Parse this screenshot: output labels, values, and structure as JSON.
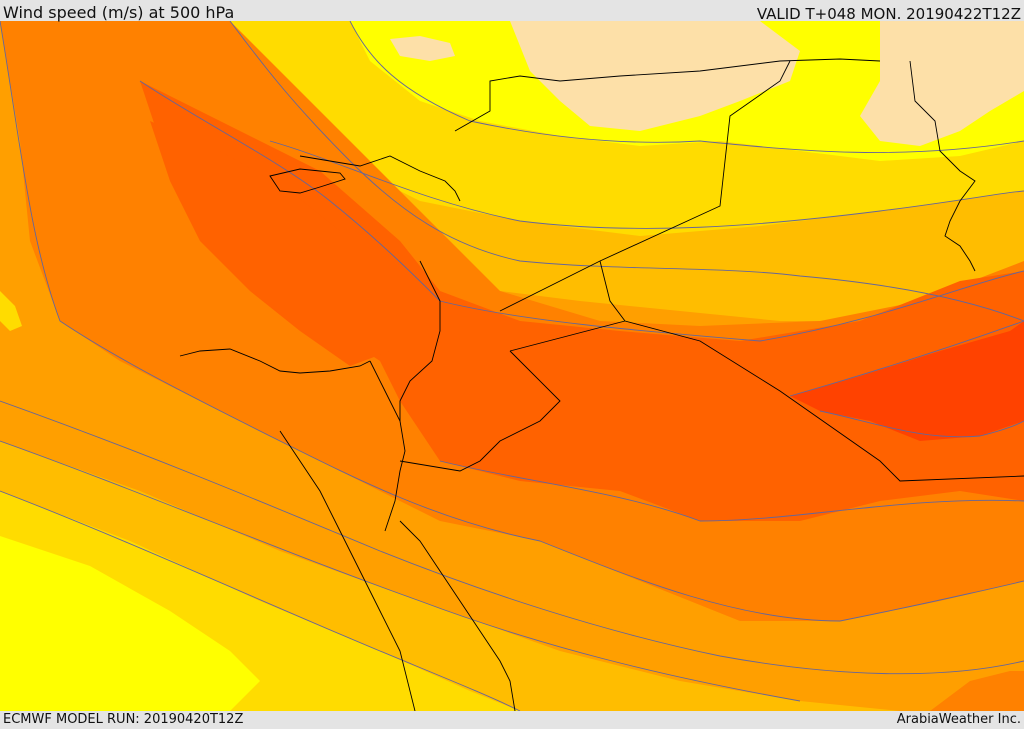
{
  "header": {
    "title": "Wind speed (m/s) at 500 hPa",
    "valid": "VALID T+048 MON. 20190422T12Z"
  },
  "footer": {
    "model_run": "ECMWF MODEL RUN: 20190420T12Z",
    "credit": "ArabiaWeather Inc."
  },
  "colors": {
    "band_pale": "#fde0a8",
    "band_yellow": "#ffff00",
    "band_gold": "#ffdc00",
    "band_amber": "#ffbd00",
    "band_orange1": "#ff9f00",
    "band_orange2": "#ff8100",
    "band_orange3": "#ff6200",
    "band_red": "#ff4200",
    "contour": "#666699",
    "border": "#000000"
  }
}
